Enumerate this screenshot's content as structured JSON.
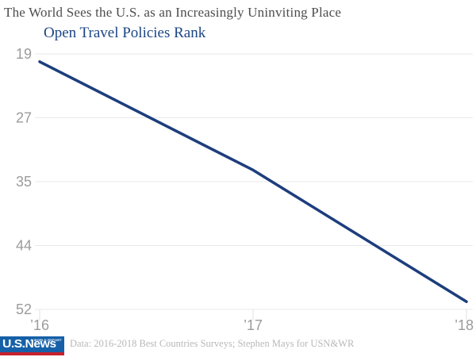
{
  "header": {
    "title": "The World Sees the U.S. as an Increasingly Uninviting Place",
    "subtitle": "Open Travel Policies Rank"
  },
  "chart_data": {
    "type": "line",
    "title": "Open Travel Policies Rank",
    "x": [
      "’16",
      "’17",
      "’18"
    ],
    "values": [
      20,
      34,
      51
    ],
    "series_name": "U.S. Open Travel Policies Rank",
    "y_ticks": [
      19,
      27,
      35,
      44,
      52
    ],
    "ylim": [
      19,
      52
    ],
    "y_inverted": true,
    "grid": true,
    "legend": "none",
    "line_color": "#1d3e7d",
    "grid_color": "#e9e9e9",
    "tick_label_color": "#9b9b9b"
  },
  "footer": {
    "logo": {
      "primary": "U.S.News",
      "secondary": "& WORLD REPORT"
    },
    "source": "Data: 2016-2018 Best Countries Surveys; Stephen Mays for USN&WR"
  },
  "colors": {
    "title": "#4d4d4d",
    "subtitle": "#1b4584",
    "line": "#1d3e7d",
    "logo_blue": "#1560a8",
    "logo_red": "#c6202f",
    "background": "#ffffff"
  }
}
